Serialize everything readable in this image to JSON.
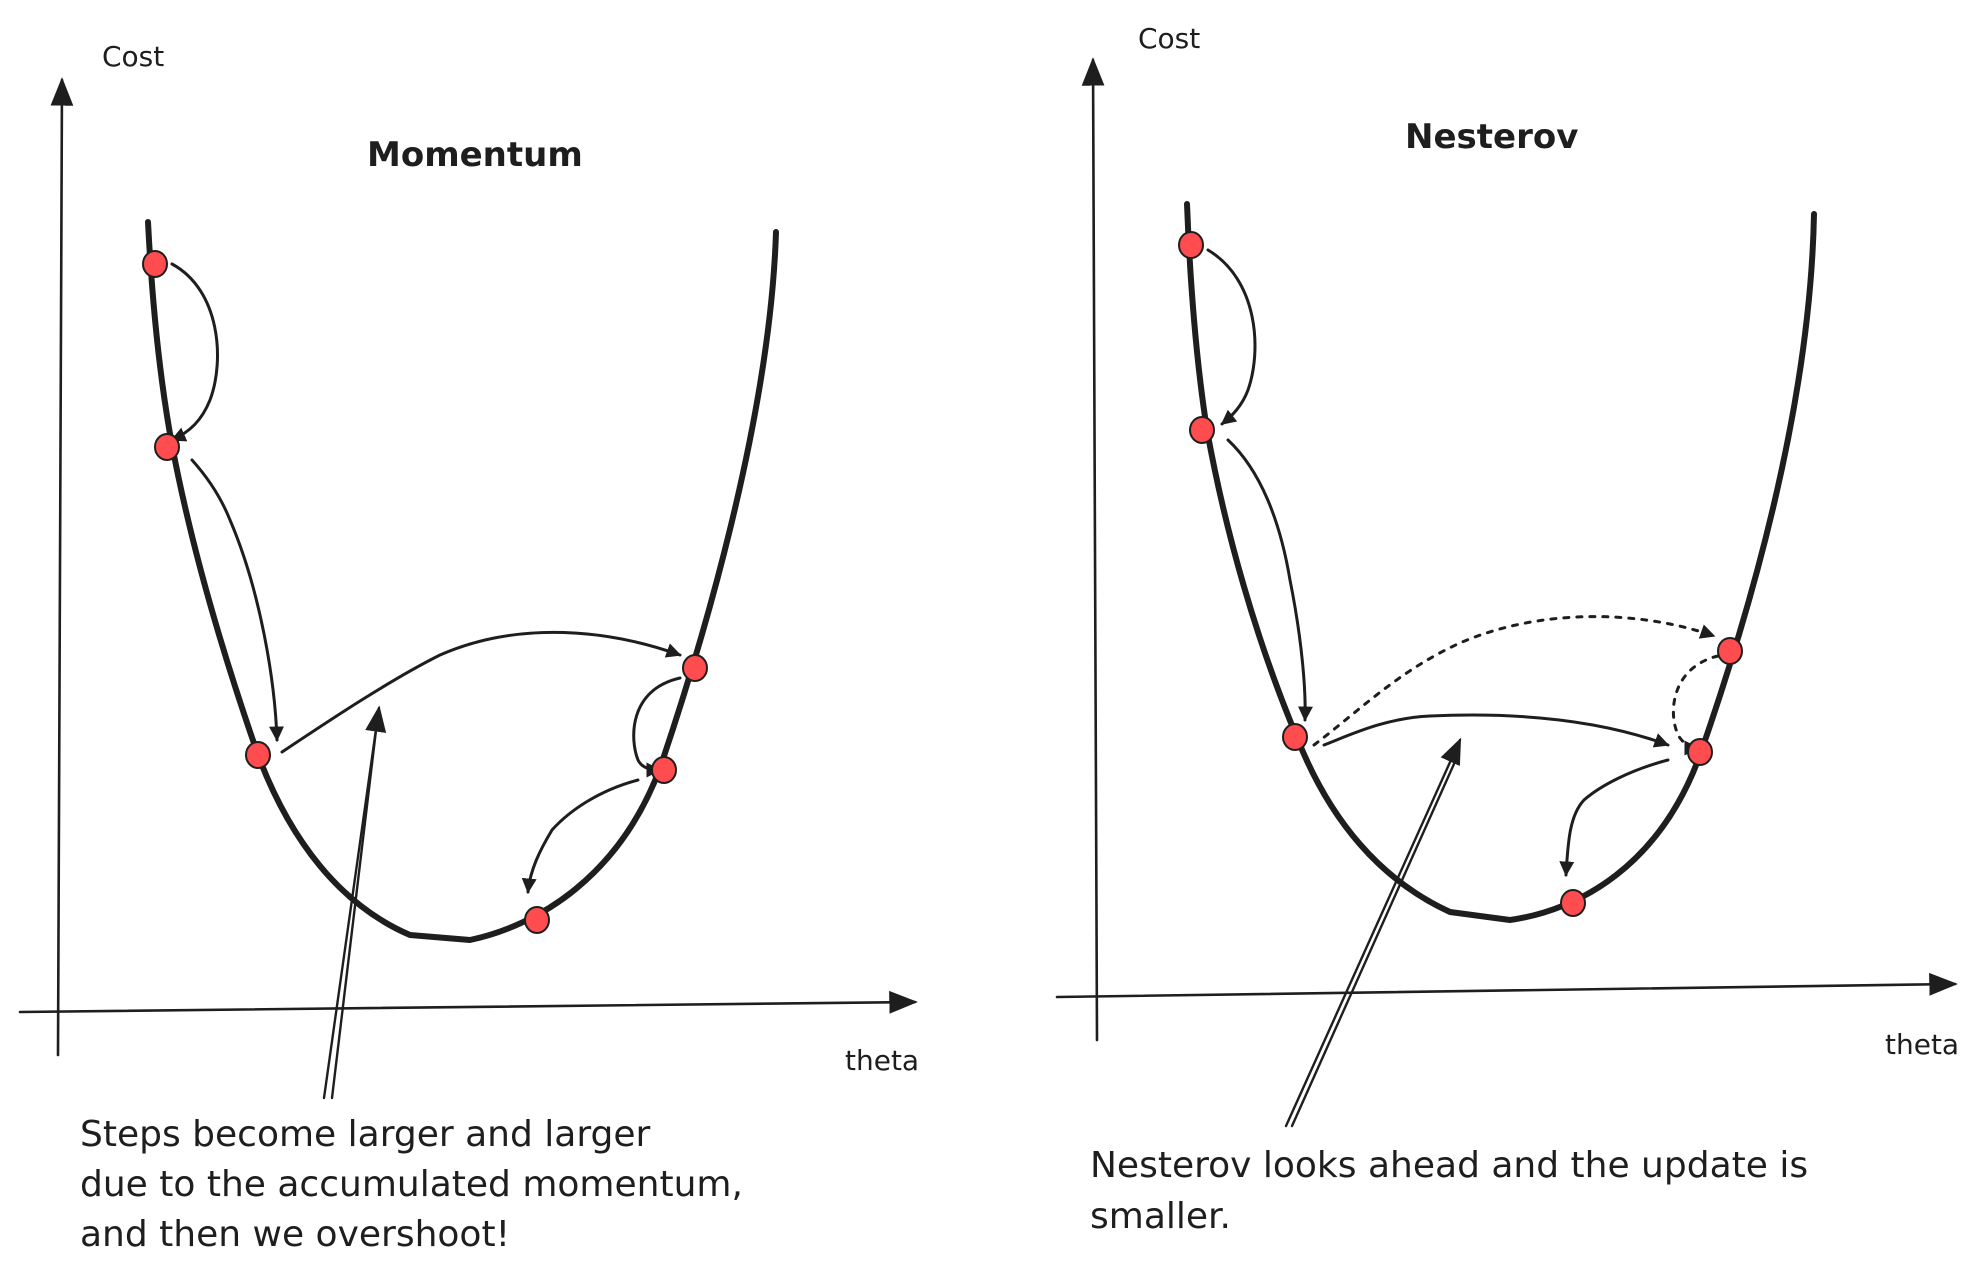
{
  "panels": [
    {
      "title": "Momentum",
      "y_axis_label": "Cost",
      "x_axis_label": "theta",
      "annotation_lines": [
        "Steps become larger and larger",
        "due to the accumulated momentum,",
        "and then we overshoot!"
      ]
    },
    {
      "title": "Nesterov",
      "y_axis_label": "Cost",
      "x_axis_label": "theta",
      "annotation_lines": [
        "Nesterov looks ahead and the update is",
        "smaller."
      ]
    }
  ],
  "colors": {
    "ink": "#1e1e1e",
    "point": "#ff4d4f",
    "background": "#ffffff"
  }
}
